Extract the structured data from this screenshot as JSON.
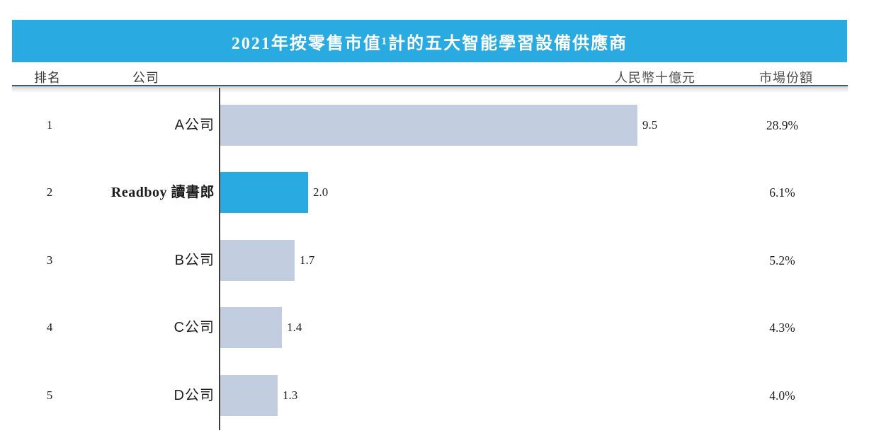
{
  "chart_data": {
    "type": "bar",
    "orientation": "horizontal",
    "title": "2021年按零售市值¹計的五大智能學習設備供應商",
    "columns": {
      "rank": "排名",
      "company": "公司",
      "unit": "人民幣十億元",
      "share": "市場份額"
    },
    "xlim": [
      0,
      9.5
    ],
    "grid": false,
    "rows": [
      {
        "rank": "1",
        "company": "A公司",
        "value": 9.5,
        "value_label": "9.5",
        "share": "28.9%",
        "highlight": false
      },
      {
        "rank": "2",
        "company": "Readboy 讀書郎",
        "value": 2.0,
        "value_label": "2.0",
        "share": "6.1%",
        "highlight": true
      },
      {
        "rank": "3",
        "company": "B公司",
        "value": 1.7,
        "value_label": "1.7",
        "share": "5.2%",
        "highlight": false
      },
      {
        "rank": "4",
        "company": "C公司",
        "value": 1.4,
        "value_label": "1.4",
        "share": "4.3%",
        "highlight": false
      },
      {
        "rank": "5",
        "company": "D公司",
        "value": 1.3,
        "value_label": "1.3",
        "share": "4.0%",
        "highlight": false
      }
    ]
  },
  "colors": {
    "band": "#29abe2",
    "bar_default": "#c2cde0",
    "bar_highlight": "#29abe2",
    "rule": "#315e7d",
    "axis": "#3c3c3c"
  }
}
